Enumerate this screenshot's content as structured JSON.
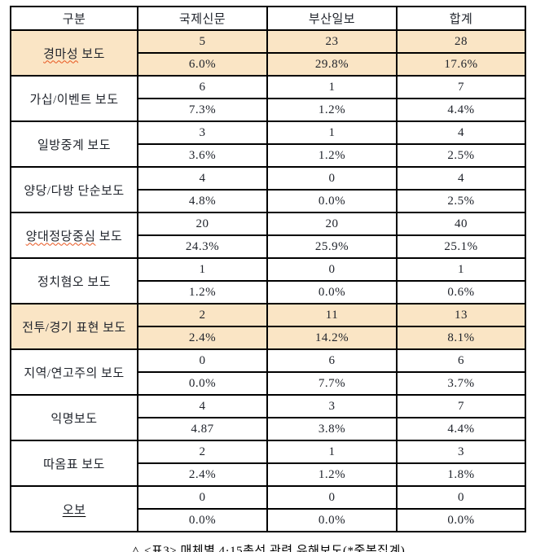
{
  "colors": {
    "highlight_row_bg": "#FAE5C5",
    "squiggle_underline": "#E8551E",
    "border": "#000000",
    "text": "#20242C"
  },
  "caption": "△ <표3> 매체별 4·15총선 관련 유해보도(*중복집계)",
  "table": {
    "columns": [
      "구분",
      "국제신문",
      "부산일보",
      "합계"
    ],
    "rows": [
      {
        "label": "경마성 보도",
        "label_parts": [
          {
            "text": "경마성",
            "mark": "wavy"
          },
          {
            "text": " 보도",
            "mark": "none"
          }
        ],
        "highlight": true,
        "counts": [
          "5",
          "23",
          "28"
        ],
        "percents": [
          "6.0%",
          "29.8%",
          "17.6%"
        ]
      },
      {
        "label": "가십/이벤트 보도",
        "label_parts": [
          {
            "text": "가십/이벤트 보도",
            "mark": "none"
          }
        ],
        "highlight": false,
        "counts": [
          "6",
          "1",
          "7"
        ],
        "percents": [
          "7.3%",
          "1.2%",
          "4.4%"
        ]
      },
      {
        "label": "일방중계 보도",
        "label_parts": [
          {
            "text": "일방중계 보도",
            "mark": "none"
          }
        ],
        "highlight": false,
        "counts": [
          "3",
          "1",
          "4"
        ],
        "percents": [
          "3.6%",
          "1.2%",
          "2.5%"
        ]
      },
      {
        "label": "양당/다방 단순보도",
        "label_parts": [
          {
            "text": "양당/다방 단순보도",
            "mark": "none"
          }
        ],
        "highlight": false,
        "counts": [
          "4",
          "0",
          "4"
        ],
        "percents": [
          "4.8%",
          "0.0%",
          "2.5%"
        ]
      },
      {
        "label": "양대정당중심 보도",
        "label_parts": [
          {
            "text": "양대정당중심",
            "mark": "wavy"
          },
          {
            "text": " 보도",
            "mark": "none"
          }
        ],
        "highlight": false,
        "counts": [
          "20",
          "20",
          "40"
        ],
        "percents": [
          "24.3%",
          "25.9%",
          "25.1%"
        ]
      },
      {
        "label": "정치혐오 보도",
        "label_parts": [
          {
            "text": "정치혐오 보도",
            "mark": "none"
          }
        ],
        "highlight": false,
        "counts": [
          "1",
          "0",
          "1"
        ],
        "percents": [
          "1.2%",
          "0.0%",
          "0.6%"
        ]
      },
      {
        "label": "전투/경기 표현 보도",
        "label_parts": [
          {
            "text": "전투/경기 표현 보도",
            "mark": "none"
          }
        ],
        "highlight": true,
        "counts": [
          "2",
          "11",
          "13"
        ],
        "percents": [
          "2.4%",
          "14.2%",
          "8.1%"
        ]
      },
      {
        "label": "지역/연고주의 보도",
        "label_parts": [
          {
            "text": "지역/연고주의 보도",
            "mark": "none"
          }
        ],
        "highlight": false,
        "counts": [
          "0",
          "6",
          "6"
        ],
        "percents": [
          "0.0%",
          "7.7%",
          "3.7%"
        ]
      },
      {
        "label": "익명보도",
        "label_parts": [
          {
            "text": "익명보도",
            "mark": "none"
          }
        ],
        "highlight": false,
        "counts": [
          "4",
          "3",
          "7"
        ],
        "percents": [
          "4.87",
          "3.8%",
          "4.4%"
        ]
      },
      {
        "label": "따옴표 보도",
        "label_parts": [
          {
            "text": "따옴표 보도",
            "mark": "none"
          }
        ],
        "highlight": false,
        "counts": [
          "2",
          "1",
          "3"
        ],
        "percents": [
          "2.4%",
          "1.2%",
          "1.8%"
        ]
      },
      {
        "label": "오보",
        "label_parts": [
          {
            "text": "오보",
            "mark": "solid"
          }
        ],
        "highlight": false,
        "counts": [
          "0",
          "0",
          "0"
        ],
        "percents": [
          "0.0%",
          "0.0%",
          "0.0%"
        ]
      }
    ]
  }
}
